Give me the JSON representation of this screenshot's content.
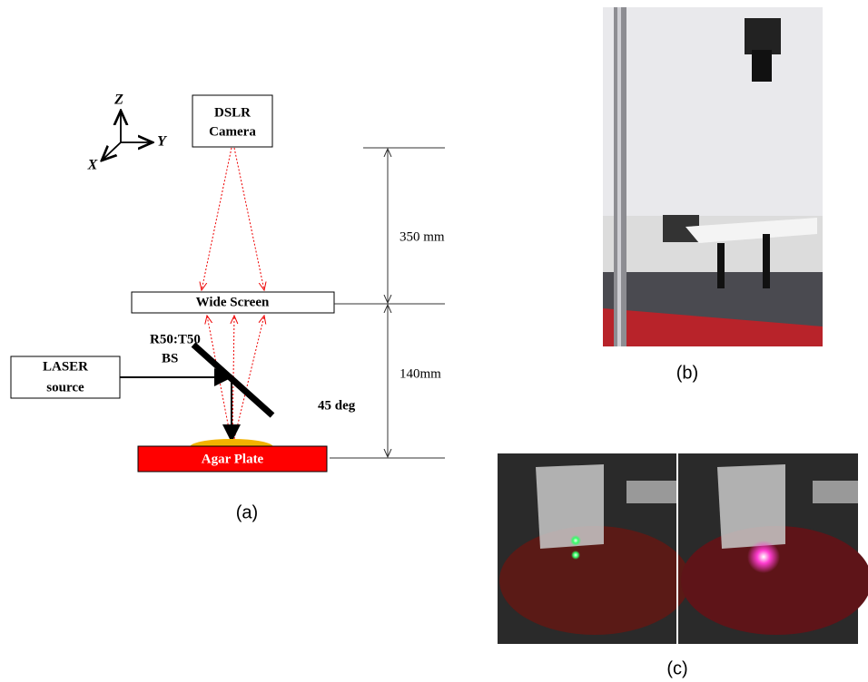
{
  "panel_a": {
    "axes": {
      "z": "Z",
      "y": "Y",
      "x": "X"
    },
    "camera": [
      "DSLR",
      "Camera"
    ],
    "screen": "Wide Screen",
    "splitter": [
      "R50:T50",
      "BS"
    ],
    "laser": [
      "LASER",
      "source"
    ],
    "angle": "45 deg",
    "plate": "Agar Plate",
    "distances": [
      "350 mm",
      "140mm"
    ],
    "caption": "(a)"
  },
  "panel_b": {
    "caption": "(b)"
  },
  "panel_c": {
    "caption": "(c)"
  }
}
